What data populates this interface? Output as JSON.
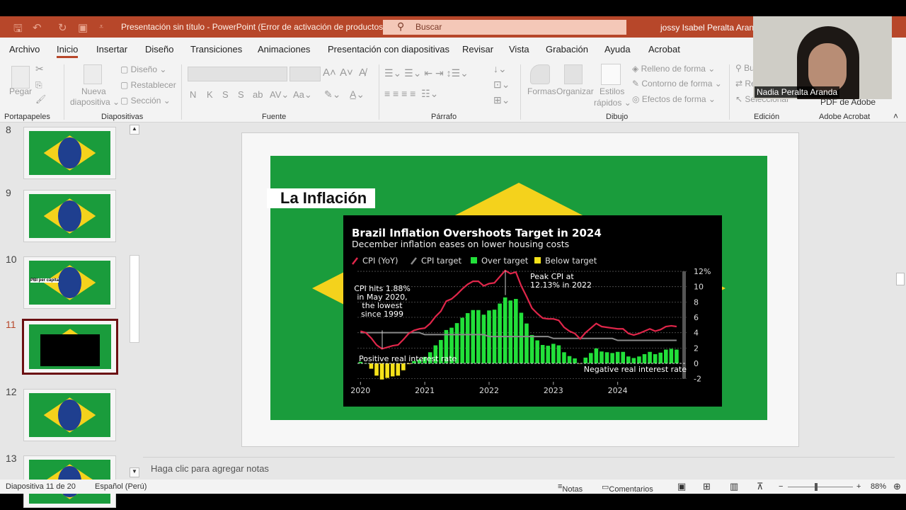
{
  "titlebar": {
    "document_title": "Presentación sin título  -  PowerPoint (Error de activación de productos)",
    "search_placeholder": "Buscar",
    "user": "jossy Isabel Peralta Aranda"
  },
  "tabs": [
    {
      "label": "Archivo"
    },
    {
      "label": "Inicio",
      "active": true
    },
    {
      "label": "Insertar"
    },
    {
      "label": "Diseño"
    },
    {
      "label": "Transiciones"
    },
    {
      "label": "Animaciones"
    },
    {
      "label": "Presentación con diapositivas"
    },
    {
      "label": "Revisar"
    },
    {
      "label": "Vista"
    },
    {
      "label": "Grabación"
    },
    {
      "label": "Ayuda"
    },
    {
      "label": "Acrobat"
    }
  ],
  "ribbon": {
    "pegar": "Pegar",
    "nueva": "Nueva",
    "diapositiva": "diapositiva ⌄",
    "diseno": "Diseño ⌄",
    "restablecer": "Restablecer",
    "seccion": "Sección ⌄",
    "font_buttons": [
      "N",
      "K",
      "S",
      "S",
      "ab",
      "AV⌄",
      "Aa⌄"
    ],
    "formas": "Formas",
    "organizar": "Organizar",
    "estilos": "Estilos",
    "rapidos": "rápidos ⌄",
    "relleno": "Relleno de forma ⌄",
    "contorno": "Contorno de forma ⌄",
    "efectos": "Efectos de forma ⌄",
    "buscar": "Bu",
    "reemplazar": "Re",
    "seleccionar": "Seleccionar",
    "pdf": "PDF de Adobe",
    "groups": {
      "portapapeles": "Portapapeles",
      "diapositivas": "Diapositivas",
      "fuente": "Fuente",
      "parrafo": "Párrafo",
      "dibujo": "Dibujo",
      "edicion": "Edición",
      "acrobat": "Adobe Acrobat"
    }
  },
  "thumbnails": [
    {
      "number": "8"
    },
    {
      "number": "9"
    },
    {
      "number": "10",
      "label": "PBI per cápita"
    },
    {
      "number": "11",
      "selected": true
    },
    {
      "number": "12"
    },
    {
      "number": "13"
    }
  ],
  "slide": {
    "title": "La Inflación"
  },
  "chart_data": {
    "type": "bar+line",
    "title": "Brazil Inflation Overshoots Target in 2024",
    "subtitle": "December inflation eases on lower housing costs",
    "legend": [
      {
        "name": "CPI (YoY)",
        "color": "#e0264a"
      },
      {
        "name": "CPI target",
        "color": "#8a8a8a"
      },
      {
        "name": "Over target",
        "color": "#22e03a"
      },
      {
        "name": "Below target",
        "color": "#f5e21a"
      }
    ],
    "legend_placement": "top-left",
    "y_ticks": [
      "12%",
      "10",
      "8",
      "6",
      "4",
      "2",
      "0",
      "-2"
    ],
    "y_tick_values": [
      12,
      10,
      8,
      6,
      4,
      2,
      0,
      -2
    ],
    "ylim": [
      -2,
      12
    ],
    "x_ticks": [
      "2020",
      "2021",
      "2022",
      "2023",
      "2024"
    ],
    "months": [
      "2020-01",
      "2020-02",
      "2020-03",
      "2020-04",
      "2020-05",
      "2020-06",
      "2020-07",
      "2020-08",
      "2020-09",
      "2020-10",
      "2020-11",
      "2020-12",
      "2021-01",
      "2021-02",
      "2021-03",
      "2021-04",
      "2021-05",
      "2021-06",
      "2021-07",
      "2021-08",
      "2021-09",
      "2021-10",
      "2021-11",
      "2021-12",
      "2022-01",
      "2022-02",
      "2022-03",
      "2022-04",
      "2022-05",
      "2022-06",
      "2022-07",
      "2022-08",
      "2022-09",
      "2022-10",
      "2022-11",
      "2022-12",
      "2023-01",
      "2023-02",
      "2023-03",
      "2023-04",
      "2023-05",
      "2023-06",
      "2023-07",
      "2023-08",
      "2023-09",
      "2023-10",
      "2023-11",
      "2023-12",
      "2024-01",
      "2024-02",
      "2024-03",
      "2024-04",
      "2024-05",
      "2024-06",
      "2024-07",
      "2024-08",
      "2024-09",
      "2024-10",
      "2024-11",
      "2024-12"
    ],
    "cpi": [
      4.2,
      4.0,
      3.3,
      2.4,
      1.9,
      2.1,
      2.3,
      2.4,
      3.1,
      3.9,
      4.3,
      4.5,
      4.6,
      5.2,
      6.1,
      6.8,
      8.1,
      8.4,
      9.0,
      9.7,
      10.3,
      10.7,
      10.7,
      10.1,
      10.4,
      10.5,
      11.3,
      12.1,
      11.7,
      11.9,
      10.1,
      8.7,
      7.2,
      6.5,
      5.9,
      5.8,
      5.8,
      5.6,
      4.7,
      4.2,
      3.9,
      3.2,
      4.0,
      4.6,
      5.2,
      4.8,
      4.7,
      4.6,
      4.5,
      4.5,
      3.9,
      3.7,
      3.9,
      4.2,
      4.5,
      4.2,
      4.4,
      4.8,
      4.9,
      4.8
    ],
    "target": [
      4.0,
      4.0,
      4.0,
      4.0,
      4.0,
      4.0,
      4.0,
      4.0,
      4.0,
      4.0,
      4.0,
      4.0,
      3.75,
      3.75,
      3.75,
      3.75,
      3.75,
      3.75,
      3.75,
      3.75,
      3.75,
      3.75,
      3.75,
      3.75,
      3.5,
      3.5,
      3.5,
      3.5,
      3.5,
      3.5,
      3.5,
      3.5,
      3.5,
      3.5,
      3.5,
      3.5,
      3.25,
      3.25,
      3.25,
      3.25,
      3.25,
      3.25,
      3.25,
      3.25,
      3.25,
      3.25,
      3.25,
      3.25,
      3.0,
      3.0,
      3.0,
      3.0,
      3.0,
      3.0,
      3.0,
      3.0,
      3.0,
      3.0,
      3.0,
      3.0
    ],
    "deviation": [
      0.2,
      0.0,
      -0.7,
      -1.6,
      -2.1,
      -1.9,
      -1.7,
      -1.6,
      -0.9,
      -0.1,
      0.3,
      0.5,
      0.85,
      1.45,
      2.35,
      3.05,
      4.35,
      4.65,
      5.25,
      5.95,
      6.55,
      6.95,
      6.95,
      6.35,
      6.9,
      7.0,
      7.8,
      8.6,
      8.2,
      8.4,
      6.6,
      5.2,
      3.7,
      3.0,
      2.4,
      2.3,
      2.55,
      2.35,
      1.45,
      0.95,
      0.65,
      -0.05,
      0.75,
      1.35,
      1.95,
      1.55,
      1.45,
      1.35,
      1.5,
      1.5,
      0.9,
      0.7,
      0.9,
      1.2,
      1.5,
      1.2,
      1.4,
      1.8,
      1.9,
      1.8
    ],
    "annotations": {
      "low": [
        "CPI hits 1.88%",
        "in May 2020,",
        "the lowest",
        "since 1999"
      ],
      "peak": [
        "Peak CPI at",
        "12.13% in 2022"
      ],
      "positive": "Positive real interest rate",
      "negative": "Negative real interest rate"
    }
  },
  "notes_placeholder": "Haga clic para agregar notas",
  "status": {
    "slide": "Diapositiva 11 de 20",
    "language": "Español (Perú)",
    "notes": "Notas",
    "comments": "Comentarios",
    "zoom": "88%"
  },
  "webcam": {
    "name": "Nadia Peralta Aranda"
  },
  "colors": {
    "accent": "#b7472a",
    "flag_green": "#1a9c3c",
    "flag_yellow": "#f4d21c"
  }
}
